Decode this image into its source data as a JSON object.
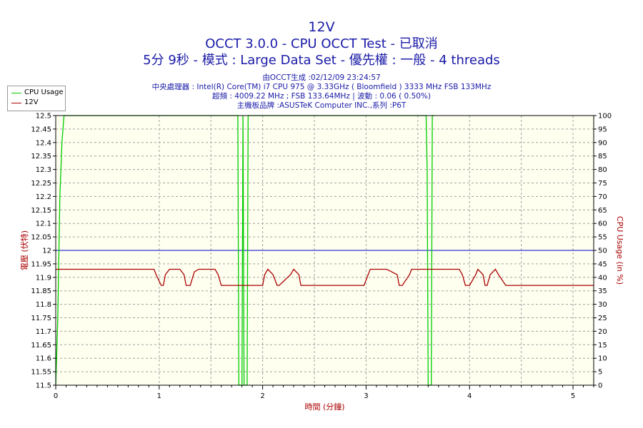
{
  "header": {
    "title": "12V",
    "subtitle": "OCCT 3.0.0 - CPU OCCT Test - 已取消",
    "run_info": "5分 9秒 - 模式 : Large Data Set - 優先權 : 一般 - 4 threads",
    "generated": "由OCCT生成 :02/12/09 23:24:57",
    "cpu": "中央處理器 : Intel(R) Core(TM) i7 CPU 975 @ 3.33GHz ( Bloomfield ) 3333 MHz FSB 133MHz",
    "overclock": "超頻 : 4009.22 MHz ; FSB 133.64MHz | 波動 : 0.06 ( 0.50%)",
    "motherboard": "主機板品牌 :ASUSTeK Computer INC.,系列 :P6T"
  },
  "legend": {
    "cpu_usage": "CPU Usage",
    "v12": "12V"
  },
  "chart_data": {
    "type": "line",
    "xlabel": "時間 (分鐘)",
    "ylabel_left": "電壓 (伏特)",
    "ylabel_right": "CPU Usage (in %)",
    "xlim": [
      0,
      5.2
    ],
    "ylim_left": [
      11.5,
      12.5
    ],
    "ylim_right": [
      0,
      100
    ],
    "x_ticks": [
      "0",
      "1",
      "2",
      "3",
      "4",
      "5"
    ],
    "y_ticks_left": [
      "11.5",
      "11.55",
      "11.6",
      "11.65",
      "11.7",
      "11.75",
      "11.8",
      "11.85",
      "11.9",
      "11.95",
      "12",
      "12.05",
      "12.1",
      "12.15",
      "12.2",
      "12.25",
      "12.3",
      "12.35",
      "12.4",
      "12.45",
      "12.5"
    ],
    "y_ticks_right": [
      "0",
      "5",
      "10",
      "15",
      "20",
      "25",
      "30",
      "35",
      "40",
      "45",
      "50",
      "55",
      "60",
      "65",
      "70",
      "75",
      "80",
      "85",
      "90",
      "95",
      "100"
    ],
    "reference_line": {
      "axis": "left",
      "value": 12.0,
      "color": "#0000cc"
    },
    "grid": true,
    "legend_position": "top-left",
    "series": [
      {
        "name": "CPU Usage",
        "axis": "right",
        "color": "#00cc00",
        "x": [
          0.0,
          0.02,
          0.04,
          0.06,
          0.08,
          0.1,
          1.76,
          1.77,
          1.78,
          1.8,
          1.81,
          1.82,
          1.84,
          1.85,
          1.86,
          3.58,
          3.59,
          3.6,
          3.62,
          3.63,
          3.64,
          3.65,
          3.66
        ],
        "values": [
          0,
          25,
          70,
          90,
          100,
          100,
          100,
          0,
          0,
          0,
          100,
          0,
          0,
          0,
          100,
          100,
          80,
          0,
          0,
          0,
          100,
          100,
          100
        ]
      },
      {
        "name": "12V",
        "axis": "left",
        "color": "#aa0000",
        "x": [
          0.0,
          0.95,
          0.97,
          1.02,
          1.04,
          1.06,
          1.1,
          1.2,
          1.24,
          1.26,
          1.3,
          1.34,
          1.38,
          1.54,
          1.57,
          1.6,
          1.62,
          2.0,
          2.02,
          2.05,
          2.1,
          2.14,
          2.16,
          2.27,
          2.3,
          2.35,
          2.37,
          2.45,
          2.47,
          2.98,
          3.02,
          3.04,
          3.2,
          3.3,
          3.32,
          3.35,
          3.42,
          3.44,
          3.9,
          3.93,
          3.96,
          4.0,
          4.06,
          4.08,
          4.13,
          4.15,
          4.17,
          4.2,
          4.25,
          4.28,
          4.35,
          4.4,
          4.47,
          4.48,
          5.2
        ],
        "values": [
          11.93,
          11.93,
          11.91,
          11.87,
          11.87,
          11.91,
          11.93,
          11.93,
          11.91,
          11.87,
          11.87,
          11.92,
          11.93,
          11.93,
          11.91,
          11.87,
          11.87,
          11.87,
          11.91,
          11.93,
          11.91,
          11.87,
          11.87,
          11.91,
          11.93,
          11.91,
          11.87,
          11.87,
          11.87,
          11.87,
          11.91,
          11.93,
          11.93,
          11.91,
          11.87,
          11.87,
          11.91,
          11.93,
          11.93,
          11.91,
          11.87,
          11.87,
          11.91,
          11.93,
          11.91,
          11.87,
          11.87,
          11.91,
          11.93,
          11.91,
          11.87,
          11.87,
          11.87,
          11.87,
          11.87
        ]
      }
    ]
  }
}
